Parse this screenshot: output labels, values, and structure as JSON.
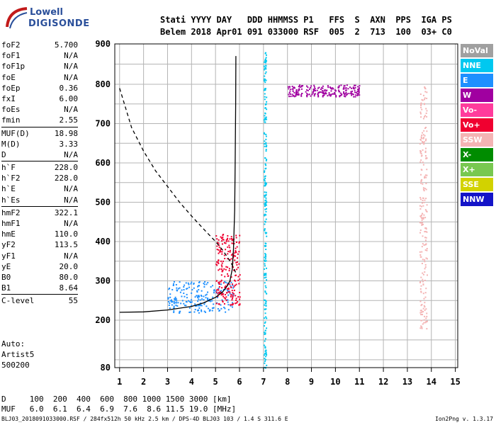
{
  "logo": {
    "line1": "Lowell",
    "line2": "DIGISONDE"
  },
  "header": {
    "line1": "Stati YYYY DAY   DDD HHMMSS P1   FFS  S  AXN  PPS  IGA PS",
    "line2": "Belem 2018 Apr01 091 033000 RSF  005  2  713  100  03+ C0"
  },
  "params": {
    "group1": [
      {
        "label": "foF2",
        "value": "5.700"
      },
      {
        "label": "foF1",
        "value": "N/A"
      },
      {
        "label": "foF1p",
        "value": "N/A"
      },
      {
        "label": "foE",
        "value": "N/A"
      },
      {
        "label": "foEp",
        "value": "0.36"
      },
      {
        "label": "fxI",
        "value": "6.00"
      },
      {
        "label": "foEs",
        "value": "N/A"
      },
      {
        "label": "fmin",
        "value": "2.55"
      }
    ],
    "group2": [
      {
        "label": "MUF(D)",
        "value": "18.98"
      },
      {
        "label": "M(D)",
        "value": "3.33"
      },
      {
        "label": "D",
        "value": "N/A"
      }
    ],
    "group3": [
      {
        "label": "h`F",
        "value": "228.0"
      },
      {
        "label": "h`F2",
        "value": "228.0"
      },
      {
        "label": "h`E",
        "value": "N/A"
      },
      {
        "label": "h`Es",
        "value": "N/A"
      }
    ],
    "group4": [
      {
        "label": "hmF2",
        "value": "322.1"
      },
      {
        "label": "hmF1",
        "value": "N/A"
      },
      {
        "label": "hmE",
        "value": "110.0"
      },
      {
        "label": "yF2",
        "value": "113.5"
      },
      {
        "label": "yF1",
        "value": "N/A"
      },
      {
        "label": "yE",
        "value": "20.0"
      },
      {
        "label": "B0",
        "value": "80.0"
      },
      {
        "label": "B1",
        "value": "8.64"
      }
    ],
    "group5": [
      {
        "label": "C-level",
        "value": "55"
      }
    ]
  },
  "auto": {
    "line1": "Auto:",
    "line2": "Artist5",
    "line3": "500200"
  },
  "muf_table": {
    "line1": "D     100  200  400  600  800 1000 1500 3000 [km]",
    "line2": "MUF   6.0  6.1  6.4  6.9  7.6  8.6 11.5 19.0 [MHz]"
  },
  "footer": {
    "left": "BLJ03_2018091033000.RSF / 284fx512h 50 kHz 2.5 km / DPS-4D BLJ03 103 / 1.4 S 311.6 E",
    "right": "Ion2Png v. 1.3.17"
  },
  "legend": [
    {
      "label": "NoVal",
      "color": "#a0a0a0"
    },
    {
      "label": "NNE",
      "color": "#00c8f0"
    },
    {
      "label": "E",
      "color": "#1e90ff"
    },
    {
      "label": "W",
      "color": "#a000a0"
    },
    {
      "label": "Vo-",
      "color": "#ff3c9c"
    },
    {
      "label": "Vo+",
      "color": "#f00030"
    },
    {
      "label": "SSW",
      "color": "#f4b4b4"
    },
    {
      "label": "X-",
      "color": "#008c00"
    },
    {
      "label": "X+",
      "color": "#78c850"
    },
    {
      "label": "SSE",
      "color": "#d2d200"
    },
    {
      "label": "NNW",
      "color": "#1414c8"
    }
  ],
  "chart_data": {
    "type": "scatter",
    "xlim": [
      0.8,
      15.1
    ],
    "ylim": [
      80,
      900
    ],
    "x_ticks": [
      "1",
      "2",
      "3",
      "4",
      "5",
      "6",
      "7",
      "8",
      "9",
      "10",
      "11",
      "12",
      "13",
      "14",
      "15"
    ],
    "y_ticks": [
      "80",
      "200",
      "300",
      "400",
      "500",
      "600",
      "700",
      "800",
      "900"
    ],
    "grid": true,
    "series": [
      {
        "name": "",
        "style": "solid",
        "points": [
          [
            1.0,
            220
          ],
          [
            2.0,
            221
          ],
          [
            3.0,
            226
          ],
          [
            4.0,
            235
          ],
          [
            4.5,
            244
          ],
          [
            5.0,
            258
          ],
          [
            5.3,
            272
          ],
          [
            5.5,
            288
          ],
          [
            5.6,
            300
          ],
          [
            5.7,
            330
          ],
          [
            5.75,
            380
          ],
          [
            5.8,
            480
          ],
          [
            5.82,
            600
          ],
          [
            5.84,
            750
          ],
          [
            5.85,
            870
          ]
        ]
      },
      {
        "name": "",
        "style": "dashed",
        "points": [
          [
            1.0,
            790
          ],
          [
            1.5,
            690
          ],
          [
            2.0,
            630
          ],
          [
            2.5,
            580
          ],
          [
            3.0,
            540
          ],
          [
            3.5,
            500
          ],
          [
            4.0,
            465
          ],
          [
            4.5,
            432
          ],
          [
            5.0,
            400
          ],
          [
            5.3,
            378
          ],
          [
            5.5,
            360
          ],
          [
            5.7,
            340
          ],
          [
            5.85,
            320
          ]
        ]
      }
    ],
    "echo_clusters": [
      {
        "legend": "E",
        "x": [
          3.0,
          5.8
        ],
        "y": [
          220,
          300
        ]
      },
      {
        "legend": "Vo+",
        "x": [
          5.0,
          6.0
        ],
        "y": [
          240,
          420
        ]
      },
      {
        "legend": "W",
        "x": [
          8.0,
          11.0
        ],
        "y": [
          770,
          800
        ]
      },
      {
        "legend": "SSW",
        "x": [
          13.5,
          13.8
        ],
        "y": [
          180,
          800
        ]
      },
      {
        "legend": "NNE",
        "x": [
          7.0,
          7.1
        ],
        "y": [
          80,
          880
        ]
      }
    ]
  }
}
